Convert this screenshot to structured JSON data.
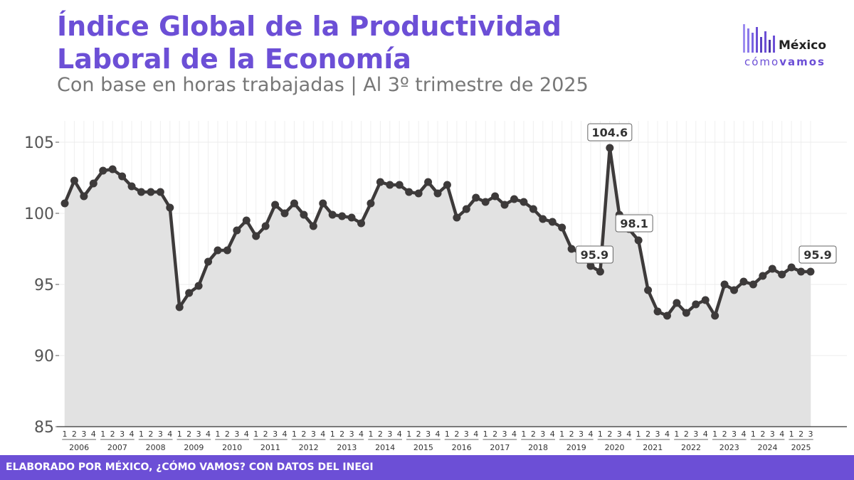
{
  "header": {
    "title": "Índice Global de la Productividad Laboral de la Economía",
    "subtitle": "Con base en horas trabajadas | Al 3º trimestre de 2025"
  },
  "logo": {
    "word": "México",
    "sub_light": "cómo",
    "sub_bold": "vamos",
    "icon": "bars-logo-icon"
  },
  "footer": {
    "text": "ELABORADO POR MÉXICO, ¿CÓMO VAMOS? CON DATOS DEL INEGI"
  },
  "colors": {
    "accent": "#6c4fd6",
    "line": "#3d3a3a",
    "area": "#e2e2e2"
  },
  "chart_data": {
    "type": "line",
    "title": "Índice Global de la Productividad Laboral de la Economía",
    "subtitle": "Con base en horas trabajadas | Al 3º trimestre de 2025",
    "xlabel": "",
    "ylabel": "",
    "ylim": [
      85,
      106
    ],
    "yticks": [
      85,
      90,
      95,
      100,
      105
    ],
    "grid": true,
    "area_fill": true,
    "years": [
      "2006",
      "2007",
      "2008",
      "2009",
      "2010",
      "2011",
      "2012",
      "2013",
      "2014",
      "2015",
      "2016",
      "2017",
      "2018",
      "2019",
      "2020",
      "2021",
      "2022",
      "2023",
      "2024",
      "2025"
    ],
    "quarter_labels": [
      "1",
      "2",
      "3",
      "4"
    ],
    "values": [
      100.7,
      102.3,
      101.2,
      102.1,
      103.0,
      103.1,
      102.6,
      101.9,
      101.5,
      101.5,
      101.5,
      100.4,
      93.4,
      94.4,
      94.9,
      96.6,
      97.4,
      97.4,
      98.8,
      99.5,
      98.4,
      99.1,
      100.6,
      100.0,
      100.7,
      99.9,
      99.1,
      100.7,
      99.9,
      99.8,
      99.7,
      99.3,
      100.7,
      102.2,
      102.0,
      102.0,
      101.5,
      101.4,
      102.2,
      101.4,
      102.0,
      99.7,
      100.3,
      101.1,
      100.8,
      101.2,
      100.6,
      101.0,
      100.8,
      100.3,
      99.6,
      99.4,
      99.0,
      97.5,
      97.2,
      96.3,
      95.9,
      104.6,
      99.9,
      98.9,
      98.1,
      94.6,
      93.1,
      92.8,
      93.7,
      93.0,
      93.6,
      93.9,
      92.8,
      95.0,
      94.6,
      95.2,
      95.0,
      95.6,
      96.1,
      95.7,
      96.2,
      95.9,
      95.9
    ],
    "annotations": [
      {
        "label": "95.9",
        "index": 56
      },
      {
        "label": "104.6",
        "index": 57
      },
      {
        "label": "98.1",
        "index": 60
      },
      {
        "label": "95.9",
        "index": 78
      }
    ]
  }
}
